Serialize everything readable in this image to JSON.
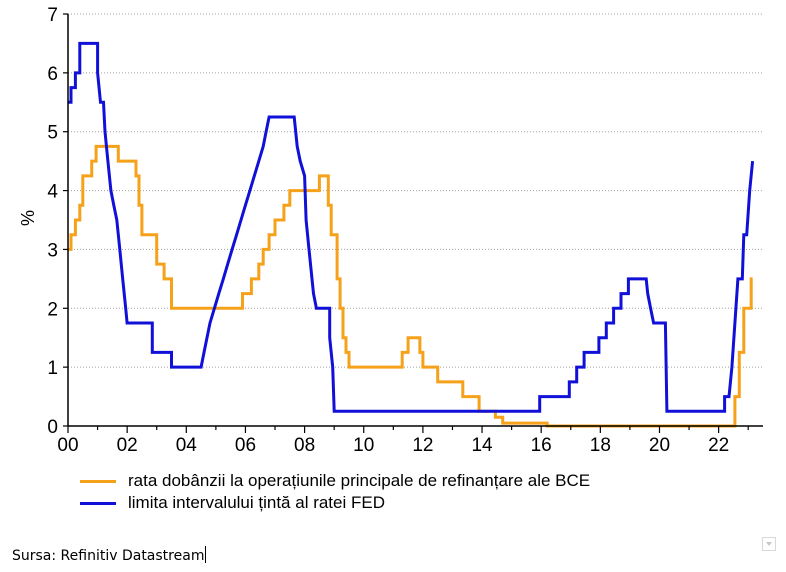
{
  "chart_data": {
    "type": "line",
    "xlabel": "",
    "ylabel": "%",
    "xlim": [
      2000,
      2023.5
    ],
    "ylim": [
      0,
      7
    ],
    "x_tick_labels": [
      "00",
      "02",
      "04",
      "06",
      "08",
      "10",
      "12",
      "14",
      "16",
      "18",
      "20",
      "22"
    ],
    "x_tick_values": [
      2000,
      2002,
      2004,
      2006,
      2008,
      2010,
      2012,
      2014,
      2016,
      2018,
      2020,
      2022
    ],
    "y_tick_labels": [
      "0",
      "1",
      "2",
      "3",
      "4",
      "5",
      "6",
      "7"
    ],
    "y_tick_values": [
      0,
      1,
      2,
      3,
      4,
      5,
      6,
      7
    ],
    "grid": "horizontal dotted",
    "series": [
      {
        "name": "rata dobânzii la operațiunile principale de refinanțare ale BCE",
        "color": "#f5a11a",
        "points": [
          [
            2000.0,
            3.0
          ],
          [
            2000.1,
            3.0
          ],
          [
            2000.1,
            3.25
          ],
          [
            2000.25,
            3.25
          ],
          [
            2000.25,
            3.5
          ],
          [
            2000.4,
            3.5
          ],
          [
            2000.4,
            3.75
          ],
          [
            2000.5,
            3.75
          ],
          [
            2000.5,
            4.25
          ],
          [
            2000.8,
            4.25
          ],
          [
            2000.8,
            4.5
          ],
          [
            2000.95,
            4.5
          ],
          [
            2000.95,
            4.75
          ],
          [
            2001.7,
            4.75
          ],
          [
            2001.7,
            4.5
          ],
          [
            2002.3,
            4.5
          ],
          [
            2002.3,
            4.25
          ],
          [
            2002.4,
            4.25
          ],
          [
            2002.4,
            3.75
          ],
          [
            2002.5,
            3.75
          ],
          [
            2002.5,
            3.25
          ],
          [
            2003.0,
            3.25
          ],
          [
            2003.0,
            2.75
          ],
          [
            2003.25,
            2.75
          ],
          [
            2003.25,
            2.5
          ],
          [
            2003.5,
            2.5
          ],
          [
            2003.5,
            2.0
          ],
          [
            2005.9,
            2.0
          ],
          [
            2005.9,
            2.25
          ],
          [
            2006.2,
            2.25
          ],
          [
            2006.2,
            2.5
          ],
          [
            2006.45,
            2.5
          ],
          [
            2006.45,
            2.75
          ],
          [
            2006.6,
            2.75
          ],
          [
            2006.6,
            3.0
          ],
          [
            2006.8,
            3.0
          ],
          [
            2006.8,
            3.25
          ],
          [
            2007.0,
            3.25
          ],
          [
            2007.0,
            3.5
          ],
          [
            2007.3,
            3.5
          ],
          [
            2007.3,
            3.75
          ],
          [
            2007.5,
            3.75
          ],
          [
            2007.5,
            4.0
          ],
          [
            2008.5,
            4.0
          ],
          [
            2008.5,
            4.25
          ],
          [
            2008.8,
            4.25
          ],
          [
            2008.8,
            3.75
          ],
          [
            2008.9,
            3.75
          ],
          [
            2008.9,
            3.25
          ],
          [
            2009.1,
            3.25
          ],
          [
            2009.1,
            2.5
          ],
          [
            2009.2,
            2.5
          ],
          [
            2009.2,
            2.0
          ],
          [
            2009.3,
            2.0
          ],
          [
            2009.3,
            1.5
          ],
          [
            2009.4,
            1.5
          ],
          [
            2009.4,
            1.25
          ],
          [
            2009.5,
            1.25
          ],
          [
            2009.5,
            1.0
          ],
          [
            2011.3,
            1.0
          ],
          [
            2011.3,
            1.25
          ],
          [
            2011.5,
            1.25
          ],
          [
            2011.5,
            1.5
          ],
          [
            2011.9,
            1.5
          ],
          [
            2011.9,
            1.25
          ],
          [
            2012.0,
            1.25
          ],
          [
            2012.0,
            1.0
          ],
          [
            2012.5,
            1.0
          ],
          [
            2012.5,
            0.75
          ],
          [
            2013.35,
            0.75
          ],
          [
            2013.35,
            0.5
          ],
          [
            2013.9,
            0.5
          ],
          [
            2013.9,
            0.25
          ],
          [
            2014.45,
            0.25
          ],
          [
            2014.45,
            0.15
          ],
          [
            2014.7,
            0.15
          ],
          [
            2014.7,
            0.05
          ],
          [
            2016.2,
            0.05
          ],
          [
            2016.2,
            0.0
          ],
          [
            2022.55,
            0.0
          ],
          [
            2022.55,
            0.5
          ],
          [
            2022.7,
            0.5
          ],
          [
            2022.7,
            1.25
          ],
          [
            2022.85,
            1.25
          ],
          [
            2022.85,
            2.0
          ],
          [
            2023.1,
            2.0
          ],
          [
            2023.1,
            2.5
          ],
          [
            2023.15,
            2.5
          ]
        ]
      },
      {
        "name": "limita intervalului țintă al ratei FED",
        "color": "#1010d8",
        "points": [
          [
            2000.0,
            5.5
          ],
          [
            2000.1,
            5.5
          ],
          [
            2000.1,
            5.75
          ],
          [
            2000.25,
            5.75
          ],
          [
            2000.25,
            6.0
          ],
          [
            2000.4,
            6.0
          ],
          [
            2000.4,
            6.5
          ],
          [
            2001.0,
            6.5
          ],
          [
            2001.0,
            6.0
          ],
          [
            2001.1,
            5.5
          ],
          [
            2001.2,
            5.5
          ],
          [
            2001.25,
            5.0
          ],
          [
            2001.35,
            4.5
          ],
          [
            2001.45,
            4.0
          ],
          [
            2001.55,
            3.75
          ],
          [
            2001.65,
            3.5
          ],
          [
            2001.75,
            3.0
          ],
          [
            2001.85,
            2.5
          ],
          [
            2001.95,
            2.0
          ],
          [
            2002.0,
            1.75
          ],
          [
            2002.85,
            1.75
          ],
          [
            2002.85,
            1.25
          ],
          [
            2003.5,
            1.25
          ],
          [
            2003.5,
            1.0
          ],
          [
            2004.5,
            1.0
          ],
          [
            2004.6,
            1.25
          ],
          [
            2004.7,
            1.5
          ],
          [
            2004.8,
            1.75
          ],
          [
            2004.95,
            2.0
          ],
          [
            2005.1,
            2.25
          ],
          [
            2005.25,
            2.5
          ],
          [
            2005.4,
            2.75
          ],
          [
            2005.55,
            3.0
          ],
          [
            2005.7,
            3.25
          ],
          [
            2005.85,
            3.5
          ],
          [
            2006.0,
            3.75
          ],
          [
            2006.15,
            4.0
          ],
          [
            2006.3,
            4.25
          ],
          [
            2006.45,
            4.5
          ],
          [
            2006.6,
            4.75
          ],
          [
            2006.7,
            5.0
          ],
          [
            2006.8,
            5.25
          ],
          [
            2007.65,
            5.25
          ],
          [
            2007.75,
            4.75
          ],
          [
            2007.85,
            4.5
          ],
          [
            2008.0,
            4.25
          ],
          [
            2008.05,
            3.5
          ],
          [
            2008.15,
            3.0
          ],
          [
            2008.3,
            2.25
          ],
          [
            2008.4,
            2.0
          ],
          [
            2008.85,
            2.0
          ],
          [
            2008.85,
            1.5
          ],
          [
            2008.95,
            1.0
          ],
          [
            2009.0,
            0.25
          ],
          [
            2015.95,
            0.25
          ],
          [
            2015.95,
            0.5
          ],
          [
            2016.95,
            0.5
          ],
          [
            2016.95,
            0.75
          ],
          [
            2017.2,
            0.75
          ],
          [
            2017.2,
            1.0
          ],
          [
            2017.45,
            1.0
          ],
          [
            2017.45,
            1.25
          ],
          [
            2017.95,
            1.25
          ],
          [
            2017.95,
            1.5
          ],
          [
            2018.2,
            1.5
          ],
          [
            2018.2,
            1.75
          ],
          [
            2018.45,
            1.75
          ],
          [
            2018.45,
            2.0
          ],
          [
            2018.7,
            2.0
          ],
          [
            2018.7,
            2.25
          ],
          [
            2018.95,
            2.25
          ],
          [
            2018.95,
            2.5
          ],
          [
            2019.55,
            2.5
          ],
          [
            2019.6,
            2.25
          ],
          [
            2019.7,
            2.0
          ],
          [
            2019.8,
            1.75
          ],
          [
            2020.2,
            1.75
          ],
          [
            2020.25,
            0.25
          ],
          [
            2022.2,
            0.25
          ],
          [
            2022.2,
            0.5
          ],
          [
            2022.35,
            0.5
          ],
          [
            2022.45,
            1.0
          ],
          [
            2022.55,
            1.75
          ],
          [
            2022.65,
            2.5
          ],
          [
            2022.8,
            2.5
          ],
          [
            2022.85,
            3.25
          ],
          [
            2022.95,
            3.25
          ],
          [
            2023.05,
            4.0
          ],
          [
            2023.15,
            4.5
          ]
        ]
      }
    ],
    "legend": {
      "position": "bottom",
      "entries": [
        "rata dobânzii la operațiunile principale de refinanțare ale BCE",
        "limita intervalului țintă al ratei FED"
      ]
    }
  },
  "source_text": "Sursa: Refinitiv Datastream",
  "colors": {
    "ecb": "#f5a11a",
    "fed": "#1010d8",
    "grid": "#a0a0a0"
  }
}
